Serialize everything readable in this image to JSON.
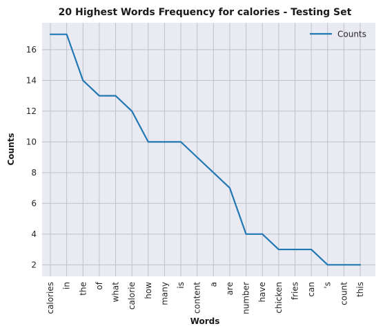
{
  "chart_data": {
    "type": "line",
    "title": "20 Highest Words Frequency for calories - Testing Set",
    "xlabel": "Words",
    "ylabel": "Counts",
    "categories": [
      "calories",
      "in",
      "the",
      "of",
      "what",
      "calorie",
      "how",
      "many",
      "is",
      "content",
      "a",
      "are",
      "number",
      "have",
      "chicken",
      "fries",
      "can",
      "'s",
      "count",
      "this"
    ],
    "series": [
      {
        "name": "Counts",
        "values": [
          17,
          17,
          14,
          13,
          13,
          12,
          10,
          10,
          10,
          9,
          8,
          7,
          4,
          4,
          3,
          3,
          3,
          2,
          2,
          2
        ]
      }
    ],
    "yticks": [
      2,
      4,
      6,
      8,
      10,
      12,
      14,
      16
    ],
    "ylim": [
      1.25,
      17.75
    ],
    "grid": true,
    "legend_position": "top-right",
    "colors": {
      "line": "#1f77b4",
      "plot_background": "#eaeaf2",
      "grid": "#c0c0c8"
    }
  }
}
